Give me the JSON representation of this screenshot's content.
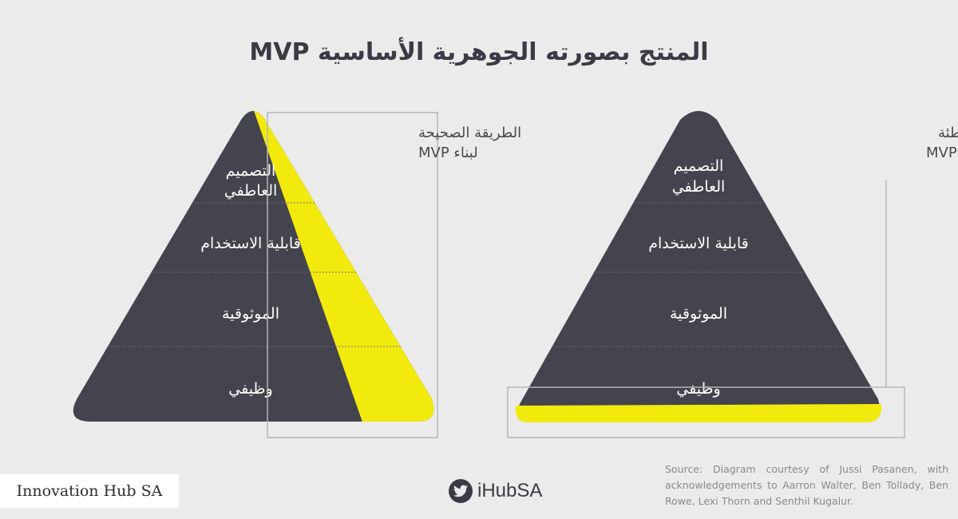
{
  "title": "المنتج بصورته الجوهرية الأساسية MVP",
  "right_way": {
    "caption_line1": "الطريقة الصحيحة",
    "caption_line2": "لبناء MVP",
    "levels": [
      {
        "line1": "التصميم",
        "line2": "العاطفي"
      },
      {
        "line1": "قابلية الاستخدام"
      },
      {
        "line1": "الموثوقية"
      },
      {
        "line1": "وظيفي"
      }
    ]
  },
  "wrong_way": {
    "caption_line1": "الطريقة الخاطئة",
    "caption_line2": "لبناء MVP",
    "levels": [
      {
        "line1": "التصميم",
        "line2": "العاطفي"
      },
      {
        "line1": "قابلية الاستخدام"
      },
      {
        "line1": "الموثوقية"
      },
      {
        "line1": "وظيفي"
      }
    ]
  },
  "colors": {
    "pyramid": "#44444e",
    "highlight": "#f2ea0d",
    "frame": "#b7b7b7",
    "divider": "#6a6a74"
  },
  "footer": {
    "brand": "Innovation Hub SA",
    "twitter_handle": "iHubSA",
    "twitter_icon": "twitter-bird-icon",
    "source": "Source: Diagram courtesy of Jussi Pasanen, with acknowledgements to Aarron Walter, Ben Tollady, Ben Rowe, Lexi Thorn and Senthil Kugalur."
  }
}
